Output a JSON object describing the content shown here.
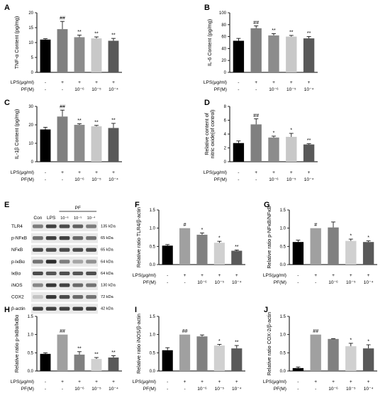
{
  "chart_data": [
    {
      "panel": "A",
      "type": "bar",
      "ylabel": "TNF-α Content (pg/mg)",
      "ylim": [
        0,
        20
      ],
      "yticks": [
        "0",
        "5",
        "10",
        "15",
        "20"
      ],
      "values": [
        11.0,
        14.5,
        11.8,
        11.4,
        10.6
      ],
      "errors": [
        0.3,
        2.6,
        0.7,
        0.5,
        0.8
      ],
      "significance": [
        "",
        "##",
        "**",
        "**",
        "**"
      ],
      "colors": [
        "#000000",
        "#808080",
        "#8c8c8c",
        "#c8c8c8",
        "#595959"
      ]
    },
    {
      "panel": "B",
      "type": "bar",
      "ylabel": "IL-6 Content (pg/mg)",
      "ylim": [
        0,
        100
      ],
      "yticks": [
        "0",
        "20",
        "40",
        "60",
        "80",
        "100"
      ],
      "values": [
        53,
        74,
        62,
        60,
        57
      ],
      "errors": [
        4,
        4,
        3,
        2,
        3
      ],
      "significance": [
        "",
        "##",
        "**",
        "**",
        "**"
      ],
      "colors": [
        "#000000",
        "#808080",
        "#8c8c8c",
        "#c8c8c8",
        "#595959"
      ]
    },
    {
      "panel": "C",
      "type": "bar",
      "ylabel": "IL-1β Content (pg/mg)",
      "ylim": [
        0,
        30
      ],
      "yticks": [
        "0",
        "10",
        "20",
        "30"
      ],
      "values": [
        17.5,
        24.5,
        20.0,
        19.2,
        18.3
      ],
      "errors": [
        1.2,
        3.5,
        0.6,
        0.5,
        2.5
      ],
      "significance": [
        "",
        "##",
        "**",
        "**",
        "**"
      ],
      "colors": [
        "#000000",
        "#808080",
        "#8c8c8c",
        "#c8c8c8",
        "#595959"
      ]
    },
    {
      "panel": "D",
      "type": "bar",
      "ylabel": "Relative content of nitric oxide(of control)",
      "ylim": [
        0,
        8
      ],
      "yticks": [
        "0",
        "2",
        "4",
        "6",
        "8"
      ],
      "values": [
        2.7,
        5.4,
        3.5,
        3.6,
        2.5
      ],
      "errors": [
        0.3,
        0.8,
        0.2,
        0.5,
        0.1
      ],
      "significance": [
        "",
        "##",
        "*",
        "*",
        "**"
      ],
      "colors": [
        "#000000",
        "#808080",
        "#8c8c8c",
        "#c8c8c8",
        "#595959"
      ]
    },
    {
      "panel": "F",
      "type": "bar",
      "ylabel": "Relative ratio TLR4/β-actin",
      "ylim": [
        0,
        1.5
      ],
      "yticks": [
        "0.0",
        "0.5",
        "1.0",
        "1.5"
      ],
      "values": [
        0.52,
        1.0,
        0.82,
        0.6,
        0.38
      ],
      "errors": [
        0.03,
        0.0,
        0.05,
        0.04,
        0.02
      ],
      "significance": [
        "",
        "#",
        "*",
        "*",
        "**"
      ],
      "colors": [
        "#000000",
        "#a0a0a0",
        "#808080",
        "#d0d0d0",
        "#595959"
      ]
    },
    {
      "panel": "G",
      "type": "bar",
      "ylabel": "Relative ratio p-NFκB/NFκB",
      "ylim": [
        0,
        1.5
      ],
      "yticks": [
        "0.0",
        "0.5",
        "1.0",
        "1.5"
      ],
      "values": [
        0.62,
        1.0,
        1.02,
        0.65,
        0.62
      ],
      "errors": [
        0.05,
        0.0,
        0.15,
        0.05,
        0.03
      ],
      "significance": [
        "",
        "#",
        "",
        "*",
        "*"
      ],
      "colors": [
        "#000000",
        "#a0a0a0",
        "#808080",
        "#d0d0d0",
        "#595959"
      ]
    },
    {
      "panel": "H",
      "type": "bar",
      "ylabel": "Relative ratio p-IκBα/IκBα",
      "ylim": [
        0,
        1.5
      ],
      "yticks": [
        "0.0",
        "0.5",
        "1.0",
        "1.5"
      ],
      "values": [
        0.47,
        1.0,
        0.45,
        0.33,
        0.37
      ],
      "errors": [
        0.03,
        0.0,
        0.08,
        0.04,
        0.05
      ],
      "significance": [
        "",
        "##",
        "**",
        "**",
        "**"
      ],
      "colors": [
        "#000000",
        "#a0a0a0",
        "#808080",
        "#d0d0d0",
        "#595959"
      ]
    },
    {
      "panel": "I",
      "type": "bar",
      "ylabel": "Relative ratio iNOS/β-actin",
      "ylim": [
        0,
        1.5
      ],
      "yticks": [
        "0.0",
        "0.5",
        "1.0",
        "1.5"
      ],
      "values": [
        0.57,
        1.0,
        0.95,
        0.7,
        0.62
      ],
      "errors": [
        0.07,
        0.0,
        0.04,
        0.03,
        0.08
      ],
      "significance": [
        "",
        "##",
        "",
        "*",
        "**"
      ],
      "colors": [
        "#000000",
        "#a0a0a0",
        "#808080",
        "#d0d0d0",
        "#595959"
      ]
    },
    {
      "panel": "J",
      "type": "bar",
      "ylabel": "Relative ratio COX-2/β-actin",
      "ylim": [
        0,
        1.5
      ],
      "yticks": [
        "0.0",
        "0.5",
        "1.0",
        "1.5"
      ],
      "values": [
        0.08,
        1.0,
        0.88,
        0.68,
        0.62
      ],
      "errors": [
        0.03,
        0.0,
        0.01,
        0.08,
        0.1
      ],
      "significance": [
        "",
        "##",
        "",
        "*",
        "*"
      ],
      "colors": [
        "#000000",
        "#a0a0a0",
        "#808080",
        "#d0d0d0",
        "#595959"
      ]
    }
  ],
  "conditions": {
    "lps_label": "LPS(μg/ml)",
    "pf_label": "PF(M)",
    "lps_values": [
      "-",
      "+",
      "+",
      "+",
      "+"
    ],
    "pf_values": [
      "-",
      "-",
      "10⁻⁶",
      "10⁻⁵",
      "10⁻⁴"
    ]
  },
  "western_blot": {
    "panel": "E",
    "header_con": "Con",
    "header_lps": "LPS",
    "header_pf": "PF",
    "pf_doses": [
      "10⁻⁶",
      "10⁻⁵",
      "10⁻⁴"
    ],
    "bands": [
      {
        "label": "TLR4",
        "kda": "135 kDa",
        "intensity": [
          0.55,
          0.85,
          0.8,
          0.7,
          0.55
        ]
      },
      {
        "label": "p-NFκB",
        "kda": "65 kDa",
        "intensity": [
          0.6,
          0.85,
          0.85,
          0.65,
          0.6
        ]
      },
      {
        "label": "NFκB",
        "kda": "65 kDa",
        "intensity": [
          0.8,
          0.8,
          0.8,
          0.8,
          0.8
        ]
      },
      {
        "label": "p-IκBα",
        "kda": "64 kDa",
        "intensity": [
          0.6,
          0.95,
          0.55,
          0.35,
          0.45
        ]
      },
      {
        "label": "IκBα",
        "kda": "64 kDa",
        "intensity": [
          0.8,
          0.75,
          0.78,
          0.75,
          0.78
        ]
      },
      {
        "label": "iNOS",
        "kda": "130 kDa",
        "intensity": [
          0.5,
          0.9,
          0.85,
          0.65,
          0.6
        ]
      },
      {
        "label": "COX2",
        "kda": "72 kDa",
        "intensity": [
          0.2,
          0.9,
          0.8,
          0.65,
          0.6
        ]
      },
      {
        "label": "β-actin",
        "kda": "42 kDa",
        "intensity": [
          0.85,
          0.85,
          0.85,
          0.85,
          0.85
        ]
      }
    ]
  }
}
